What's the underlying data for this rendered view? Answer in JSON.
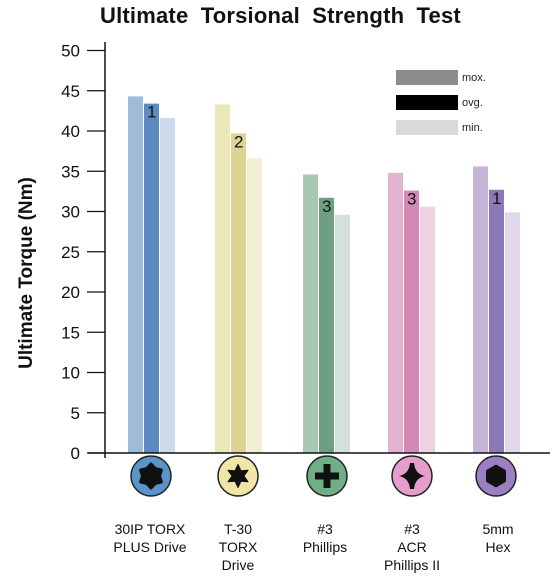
{
  "chart_data": {
    "type": "bar",
    "title": "Ultimate Torsional  Strength  Test",
    "ylabel": "Ultimate Torque  (Nm)",
    "xlabel": "",
    "ylim": [
      0,
      52
    ],
    "yticks": [
      0,
      5,
      10,
      15,
      20,
      25,
      30,
      35,
      40,
      45,
      50
    ],
    "grid": false,
    "legend_position": "top-right",
    "legend": [
      {
        "label": "mox.",
        "color": "#8c8c8c"
      },
      {
        "label": "ovg.",
        "color": "#000000"
      },
      {
        "label": "min.",
        "color": "#d9d9d9"
      }
    ],
    "categories": [
      {
        "label": "30IP  TORX\nPLUS Drive",
        "icon": "torx-plus-icon",
        "rank": "1",
        "values": {
          "max": 44.3,
          "avg": 43.4,
          "min": 41.6
        },
        "colors": {
          "max": "#9fbbd8",
          "avg": "#5b8bc0",
          "min": "#cbd9ea"
        },
        "icon_color": "#5a94c8"
      },
      {
        "label": "T-30\nTORX\nDrive",
        "icon": "torx-icon",
        "rank": "2",
        "values": {
          "max": 43.3,
          "avg": 39.7,
          "min": 36.6
        },
        "colors": {
          "max": "#ece7b8",
          "avg": "#ddd395",
          "min": "#f2efd2"
        },
        "icon_color": "#f0e6a8"
      },
      {
        "label": "#3\nPhillips",
        "icon": "phillips-icon",
        "rank": "3",
        "values": {
          "max": 34.6,
          "avg": 31.7,
          "min": 29.6
        },
        "colors": {
          "max": "#a7c9b4",
          "avg": "#6e9e84",
          "min": "#d2e2d8"
        },
        "icon_color": "#6fae86"
      },
      {
        "label": "#3\nACR\nPhillips  II",
        "icon": "acr-phillips-icon",
        "rank": "3",
        "values": {
          "max": 34.8,
          "avg": 32.6,
          "min": 30.6
        },
        "colors": {
          "max": "#e4b2cf",
          "avg": "#d488b4",
          "min": "#efd2e2"
        },
        "icon_color": "#e69fcd"
      },
      {
        "label": "5mm\nHex",
        "icon": "hex-icon",
        "rank": "1",
        "values": {
          "max": 35.6,
          "avg": 32.7,
          "min": 29.9
        },
        "colors": {
          "max": "#c5b5d8",
          "avg": "#8a79b6",
          "min": "#e0d8ea"
        },
        "icon_color": "#9b7fc2"
      }
    ]
  }
}
